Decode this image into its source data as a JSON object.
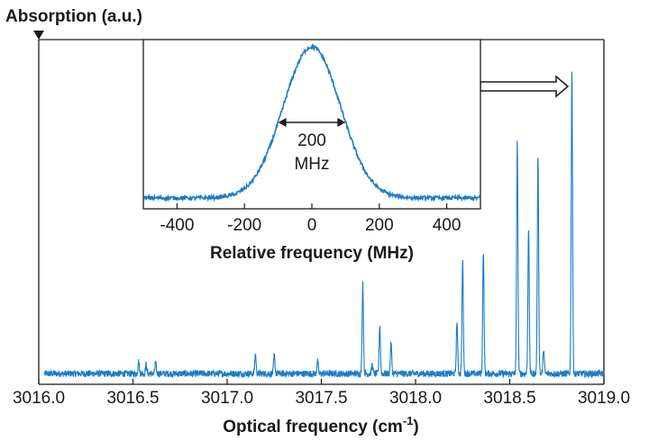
{
  "chart_data": [
    {
      "type": "line",
      "ylabel": "Absorption (a.u.)",
      "xlabel": "Optical frequency (cm",
      "xlabel_superscript": "-1",
      "xlabel_suffix": ")",
      "xlim": [
        3016.0,
        3019.0
      ],
      "ylim": [
        0,
        1
      ],
      "xticks": [
        "3016.0",
        "3016.5",
        "3017.0",
        "3017.5",
        "3018.0",
        "3018.5",
        "3019.0"
      ],
      "xtick_values": [
        3016.0,
        3016.5,
        3017.0,
        3017.5,
        3018.0,
        3018.5,
        3019.0
      ],
      "yticks": [],
      "grid": false,
      "color": "#1a7cc7",
      "baseline": 0.035,
      "series": [
        {
          "peaks": [
            {
              "x": 3016.53,
              "height": 0.04
            },
            {
              "x": 3016.57,
              "height": 0.03
            },
            {
              "x": 3016.62,
              "height": 0.035
            },
            {
              "x": 3017.15,
              "height": 0.065
            },
            {
              "x": 3017.25,
              "height": 0.06
            },
            {
              "x": 3017.48,
              "height": 0.04
            },
            {
              "x": 3017.72,
              "height": 0.3
            },
            {
              "x": 3017.77,
              "height": 0.03
            },
            {
              "x": 3017.81,
              "height": 0.16
            },
            {
              "x": 3017.87,
              "height": 0.1
            },
            {
              "x": 3018.22,
              "height": 0.17
            },
            {
              "x": 3018.25,
              "height": 0.37
            },
            {
              "x": 3018.36,
              "height": 0.4
            },
            {
              "x": 3018.54,
              "height": 0.76
            },
            {
              "x": 3018.6,
              "height": 0.48
            },
            {
              "x": 3018.65,
              "height": 0.72
            },
            {
              "x": 3018.68,
              "height": 0.08
            },
            {
              "x": 3018.83,
              "height": 1.0
            }
          ]
        }
      ]
    },
    {
      "type": "line",
      "xlabel": "Relative frequency (MHz)",
      "ylabel": "",
      "xlim": [
        -500,
        500
      ],
      "ylim": [
        0,
        1
      ],
      "xticks": [
        "-400",
        "-200",
        "0",
        "200",
        "400"
      ],
      "xtick_values": [
        -400,
        -200,
        0,
        200,
        400
      ],
      "yticks": [],
      "grid": false,
      "color": "#1a7cc7",
      "series": [
        {
          "center": 0,
          "fwhm_mhz": 200,
          "peak": 1.0,
          "baseline": 0.0
        }
      ],
      "annotation": {
        "line1": "200",
        "line2": "MHz",
        "x_from": -100,
        "x_to": 100
      }
    }
  ],
  "ui": {
    "main_marker": "▼",
    "zoom_arrow": "⇒"
  }
}
